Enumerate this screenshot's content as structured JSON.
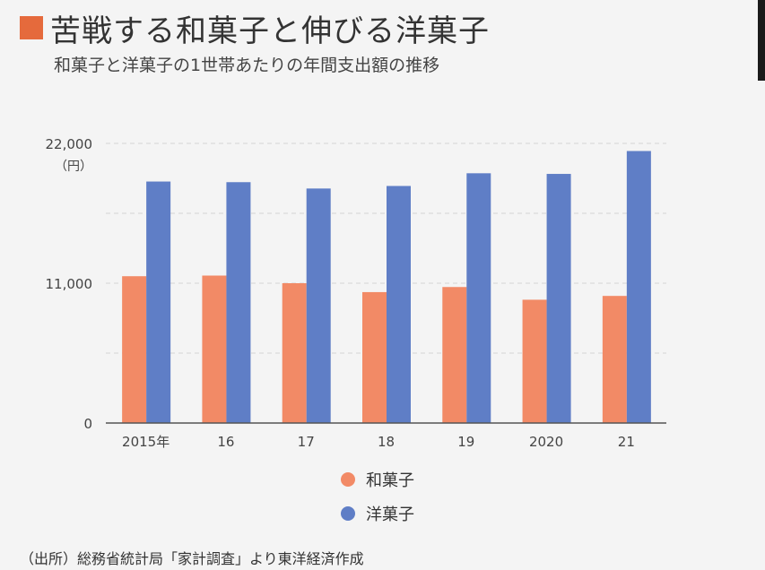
{
  "header": {
    "title": "苦戦する和菓子と伸びる洋菓子",
    "subtitle": "和菓子と洋菓子の1世帯あたりの年間支出額の推移"
  },
  "source": "（出所）総務省統計局「家計調査」より東洋経済作成",
  "colors": {
    "accent": "#e56a3c",
    "wagashi": "#f28a66",
    "yogashi": "#5f7ec6"
  },
  "chart_data": {
    "type": "bar",
    "categories": [
      "2015年",
      "16",
      "17",
      "18",
      "19",
      "2020",
      "21"
    ],
    "series": [
      {
        "name": "和菓子",
        "values": [
          11550,
          11600,
          11000,
          10300,
          10700,
          9700,
          10000
        ]
      },
      {
        "name": "洋菓子",
        "values": [
          19000,
          18950,
          18450,
          18650,
          19650,
          19600,
          21400
        ]
      }
    ],
    "yticks": [
      0,
      11000,
      22000
    ],
    "ytick_labels": [
      "0",
      "11,000",
      "22,000"
    ],
    "yunit": "（円）",
    "ylim": [
      0,
      22000
    ],
    "grid": true,
    "legend_position": "bottom"
  }
}
